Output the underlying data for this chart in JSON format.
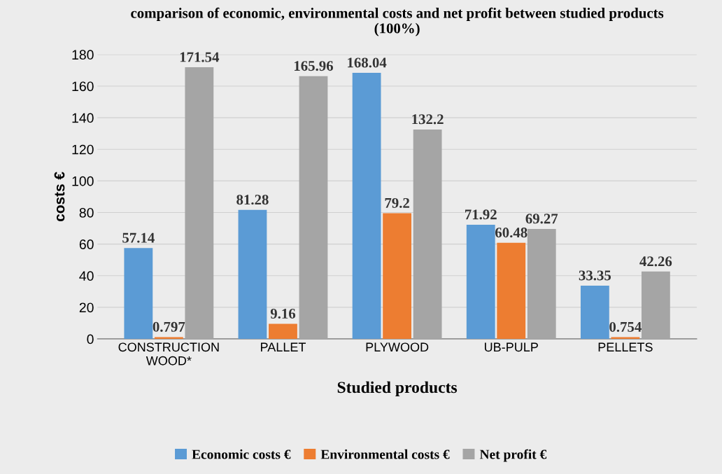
{
  "chart_data": {
    "type": "bar",
    "title": "comparison of economic, environmental costs and net profit between studied products\n(100%)",
    "xlabel": "Studied products",
    "ylabel": "costs €",
    "categories": [
      "CONSTRUCTION\nWOOD*",
      "PALLET",
      "PLYWOOD",
      "UB-PULP",
      "PELLETS"
    ],
    "series": [
      {
        "name": "Economic costs €",
        "color": "#5b9bd5",
        "values": [
          57.14,
          81.28,
          168.04,
          71.92,
          33.35
        ]
      },
      {
        "name": "Environmental costs €",
        "color": "#ed7d31",
        "values": [
          0.797,
          9.16,
          79.2,
          60.48,
          0.754
        ]
      },
      {
        "name": "Net profit €",
        "color": "#a5a5a5",
        "values": [
          171.54,
          165.96,
          132.2,
          69.27,
          42.26
        ]
      }
    ],
    "ylim": [
      0,
      180
    ],
    "yticks": [
      0,
      20,
      40,
      60,
      80,
      100,
      120,
      140,
      160,
      180
    ],
    "grid": "y",
    "legend": "bottom",
    "data_labels": true
  }
}
